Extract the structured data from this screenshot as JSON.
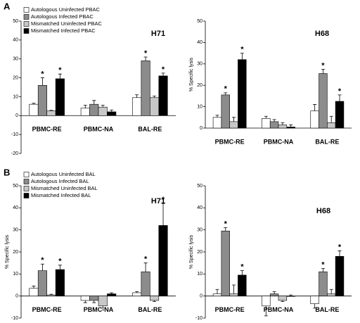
{
  "panels": [
    "A",
    "B"
  ],
  "chart_data": [
    {
      "type": "bar",
      "title": "H71",
      "categories": [
        "PBMC-RE",
        "PBMC-NA",
        "BAL-RE"
      ],
      "ylim": [
        -20,
        50
      ],
      "yticks": [
        -20,
        -10,
        0,
        10,
        20,
        30,
        40,
        50
      ],
      "legend": "upper left",
      "series": [
        {
          "name": "Autologous Uninfected PBAC",
          "color": "#ffffff",
          "values": [
            6,
            4,
            9.5
          ],
          "errors": [
            0.5,
            1.5,
            1.5
          ],
          "markers": [
            null,
            null,
            null
          ]
        },
        {
          "name": "Autologous Infected PBAC",
          "color": "#8c8c8c",
          "values": [
            16,
            6,
            29
          ],
          "errors": [
            4,
            2,
            2
          ],
          "markers": [
            "*",
            null,
            "*"
          ]
        },
        {
          "name": "Mismatched Uninfected PBAC",
          "color": "#c8c8c8",
          "values": [
            2.5,
            4.5,
            9.5
          ],
          "errors": [
            0.3,
            1,
            0.8
          ],
          "markers": [
            null,
            null,
            null
          ]
        },
        {
          "name": "Mismatched Infected PBAC",
          "color": "#000000",
          "values": [
            19.5,
            2,
            21
          ],
          "errors": [
            2.5,
            1,
            1.5
          ],
          "markers": [
            "*",
            null,
            "*"
          ]
        }
      ]
    },
    {
      "type": "bar",
      "title": "H68",
      "ylabel": "% Specific lysis",
      "categories": [
        "PBMC-RE",
        "PBMC-NA",
        "BAL-RE"
      ],
      "ylim": [
        0,
        50
      ],
      "yticks": [
        0,
        10,
        20,
        30,
        40,
        50
      ],
      "series": [
        {
          "color": "#ffffff",
          "values": [
            5,
            4.5,
            8
          ],
          "errors": [
            1,
            1,
            3
          ],
          "markers": [
            null,
            null,
            null
          ]
        },
        {
          "color": "#8c8c8c",
          "values": [
            15.5,
            3,
            25.5
          ],
          "errors": [
            1,
            1,
            2
          ],
          "markers": [
            "*",
            null,
            "*"
          ]
        },
        {
          "color": "#c8c8c8",
          "values": [
            3,
            1.5,
            2.5
          ],
          "errors": [
            2,
            1,
            3
          ],
          "markers": [
            null,
            null,
            null
          ]
        },
        {
          "color": "#000000",
          "values": [
            32,
            0.5,
            12.5
          ],
          "errors": [
            3,
            1,
            3
          ],
          "markers": [
            "*",
            null,
            "*"
          ]
        }
      ]
    },
    {
      "type": "bar",
      "title": "H71",
      "ylabel": "% Specific lysis",
      "categories": [
        "PBMC-RE",
        "PBMC-NA",
        "BAL-RE"
      ],
      "ylim": [
        -10,
        50
      ],
      "yticks": [
        -10,
        0,
        10,
        20,
        30,
        40,
        50
      ],
      "legend": "upper left",
      "series": [
        {
          "name": "Autologous Uninfected BAL",
          "color": "#ffffff",
          "values": [
            3.5,
            -2,
            1.5
          ],
          "errors": [
            1,
            1,
            0.5
          ],
          "markers": [
            null,
            null,
            null
          ]
        },
        {
          "name": "Autologous Infected BAL",
          "color": "#8c8c8c",
          "values": [
            11.5,
            -2,
            11
          ],
          "errors": [
            3,
            1,
            4
          ],
          "markers": [
            "*",
            null,
            "*"
          ]
        },
        {
          "name": "Mismatched Uninfected BAL",
          "color": "#c8c8c8",
          "values": [
            0.5,
            -4.5,
            -2
          ],
          "errors": [
            0.3,
            1,
            0.5
          ],
          "markers": [
            null,
            null,
            null
          ]
        },
        {
          "name": "Mismatched Infected BAL",
          "color": "#000000",
          "values": [
            12,
            1,
            32
          ],
          "errors": [
            2,
            0.5,
            10
          ],
          "markers": [
            "*",
            null,
            "*"
          ]
        }
      ]
    },
    {
      "type": "bar",
      "title": "H68",
      "ylabel": "% Specific lysis",
      "categories": [
        "PBMC-RE",
        "PBMC-NA",
        "BAL-RE"
      ],
      "ylim": [
        -10,
        50
      ],
      "yticks": [
        -10,
        0,
        10,
        20,
        30,
        40,
        50
      ],
      "series": [
        {
          "color": "#ffffff",
          "values": [
            1,
            -4.5,
            -3.5
          ],
          "errors": [
            2,
            4.5,
            2
          ],
          "markers": [
            null,
            null,
            null
          ]
        },
        {
          "color": "#8c8c8c",
          "values": [
            29.5,
            1,
            11
          ],
          "errors": [
            1.5,
            1,
            1.5
          ],
          "markers": [
            "*",
            null,
            "*"
          ]
        },
        {
          "color": "#c8c8c8",
          "values": [
            1,
            -2,
            1
          ],
          "errors": [
            4,
            0.5,
            2
          ],
          "markers": [
            null,
            null,
            null
          ]
        },
        {
          "color": "#000000",
          "values": [
            9.5,
            0,
            18
          ],
          "errors": [
            2,
            0.5,
            2.5
          ],
          "markers": [
            "*",
            null,
            "*"
          ]
        }
      ]
    }
  ]
}
